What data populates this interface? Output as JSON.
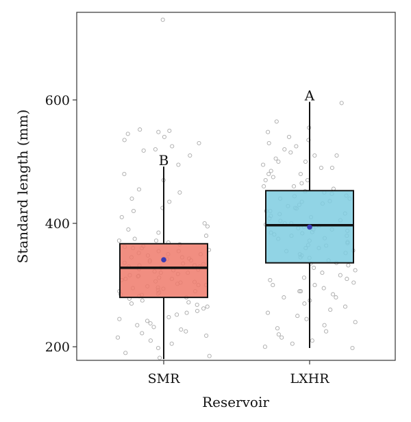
{
  "chart_data": {
    "type": "box",
    "xlabel": "Reservoir",
    "ylabel": "Standard length (mm)",
    "ylim": [
      178,
      742
    ],
    "yticks": [
      200,
      400,
      600
    ],
    "grid": false,
    "categories": [
      "SMR",
      "LXHR"
    ],
    "boxes": [
      {
        "category": "SMR",
        "color": "#ef7a6b",
        "letter": "B",
        "whisker_low": 180,
        "q1": 280,
        "median": 328,
        "q3": 367,
        "whisker_high": 492,
        "mean": 341
      },
      {
        "category": "LXHR",
        "color": "#7ecce0",
        "letter": "A",
        "whisker_low": 198,
        "q1": 336,
        "median": 397,
        "q3": 453,
        "whisker_high": 597,
        "mean": 394
      }
    ],
    "mean_color": "#3b3bb3",
    "points": [
      {
        "category": "SMR",
        "values": [
          730,
          550,
          545,
          552,
          548,
          540,
          535,
          530,
          525,
          520,
          518,
          510,
          495,
          480,
          470,
          455,
          450,
          440,
          435,
          425,
          420,
          410,
          400,
          395,
          390,
          385,
          380,
          375,
          372,
          369,
          366,
          363,
          360,
          357,
          355,
          352,
          350,
          348,
          345,
          343,
          340,
          338,
          336,
          334,
          332,
          330,
          328,
          326,
          324,
          322,
          320,
          318,
          316,
          314,
          312,
          310,
          308,
          306,
          304,
          302,
          300,
          298,
          296,
          294,
          292,
          290,
          288,
          286,
          284,
          282,
          280,
          278,
          275,
          272,
          268,
          265,
          262,
          258,
          255,
          252,
          248,
          245,
          242,
          238,
          235,
          232,
          228,
          225,
          222,
          218,
          215,
          210,
          205,
          198,
          190,
          185,
          182,
          300,
          310,
          320,
          330,
          340,
          350,
          360,
          290,
          270,
          335,
          345,
          355,
          325,
          315,
          305,
          295,
          285,
          362,
          372,
          342,
          332
        ]
      },
      {
        "category": "LXHR",
        "values": [
          595,
          565,
          555,
          548,
          540,
          535,
          530,
          525,
          520,
          515,
          510,
          505,
          500,
          495,
          490,
          485,
          480,
          475,
          470,
          465,
          460,
          456,
          452,
          448,
          444,
          440,
          436,
          432,
          428,
          424,
          420,
          416,
          412,
          408,
          404,
          400,
          398,
          396,
          394,
          392,
          390,
          388,
          386,
          384,
          382,
          380,
          376,
          372,
          368,
          364,
          360,
          356,
          352,
          348,
          344,
          340,
          336,
          332,
          328,
          324,
          320,
          316,
          312,
          308,
          304,
          300,
          295,
          290,
          285,
          280,
          275,
          270,
          265,
          260,
          255,
          250,
          245,
          240,
          235,
          230,
          225,
          220,
          215,
          210,
          205,
          200,
          198,
          410,
          420,
          430,
          440,
          450,
          400,
          390,
          380,
          370,
          360,
          350,
          405,
          415,
          425,
          435,
          445,
          395,
          385,
          375,
          365,
          355,
          345,
          335,
          460,
          470,
          480,
          490,
          500,
          510,
          310,
          300,
          290,
          280
        ]
      }
    ]
  }
}
